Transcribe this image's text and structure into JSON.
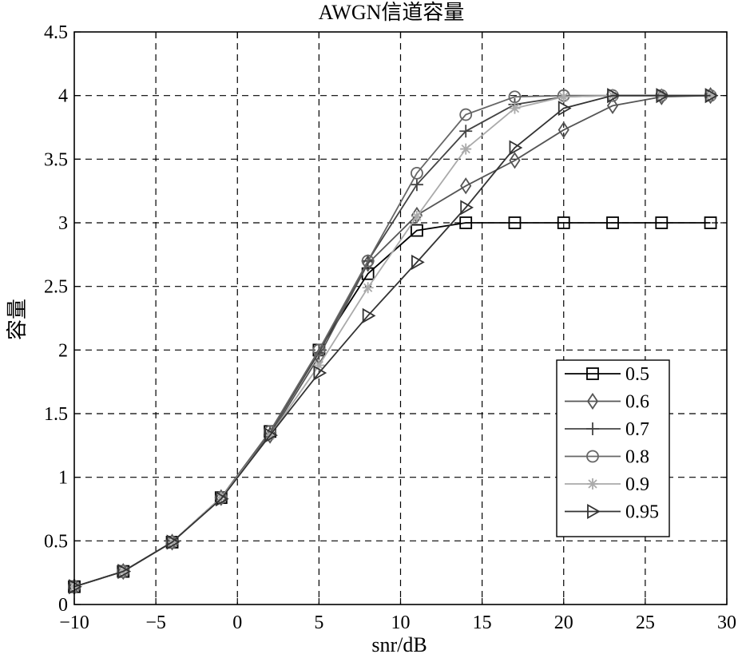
{
  "chart_data": {
    "type": "line",
    "title": "AWGN信道容量",
    "xlabel": "snr/dB",
    "ylabel": "容量",
    "xlim": [
      -10,
      30
    ],
    "ylim": [
      0,
      4.5
    ],
    "xticks": [
      -10,
      -5,
      0,
      5,
      10,
      15,
      20,
      25,
      30
    ],
    "xtick_labels": [
      "−10",
      "−5",
      "0",
      "5",
      "10",
      "15",
      "20",
      "25",
      "30"
    ],
    "yticks": [
      0,
      0.5,
      1,
      1.5,
      2,
      2.5,
      3,
      3.5,
      4,
      4.5
    ],
    "ytick_labels": [
      "0",
      "0.5",
      "1",
      "1.5",
      "2",
      "2.5",
      "3",
      "3.5",
      "4",
      "4.5"
    ],
    "grid": true,
    "legend_position": "lower-right",
    "x": [
      -10,
      -7,
      -4,
      -1,
      2,
      5,
      8,
      11,
      14,
      17,
      20,
      23,
      26,
      29
    ],
    "series": [
      {
        "name": "0.5",
        "marker": "square",
        "color": "#000000",
        "values": [
          0.14,
          0.26,
          0.49,
          0.84,
          1.36,
          2.0,
          2.6,
          2.94,
          3.0,
          3.0,
          3.0,
          3.0,
          3.0,
          3.0
        ]
      },
      {
        "name": "0.6",
        "marker": "diamond",
        "color": "#555555",
        "values": [
          0.14,
          0.26,
          0.49,
          0.84,
          1.33,
          1.95,
          2.68,
          3.06,
          3.29,
          3.49,
          3.73,
          3.92,
          3.99,
          4.0
        ]
      },
      {
        "name": "0.7",
        "marker": "plus",
        "color": "#444444",
        "values": [
          0.14,
          0.26,
          0.49,
          0.84,
          1.35,
          1.98,
          2.7,
          3.3,
          3.72,
          3.93,
          3.99,
          4.0,
          4.0,
          4.0
        ]
      },
      {
        "name": "0.8",
        "marker": "circle",
        "color": "#666666",
        "values": [
          0.14,
          0.26,
          0.49,
          0.84,
          1.36,
          2.0,
          2.7,
          3.39,
          3.85,
          3.99,
          4.0,
          4.0,
          4.0,
          4.0
        ]
      },
      {
        "name": "0.9",
        "marker": "star",
        "color": "#aaaaaa",
        "values": [
          0.14,
          0.26,
          0.49,
          0.84,
          1.33,
          1.88,
          2.49,
          3.05,
          3.58,
          3.9,
          3.99,
          4.0,
          4.0,
          4.0
        ]
      },
      {
        "name": "0.95",
        "marker": "triangle-right",
        "color": "#333333",
        "values": [
          0.14,
          0.26,
          0.49,
          0.83,
          1.33,
          1.82,
          2.27,
          2.69,
          3.12,
          3.59,
          3.9,
          4.0,
          4.0,
          4.0
        ]
      }
    ]
  }
}
